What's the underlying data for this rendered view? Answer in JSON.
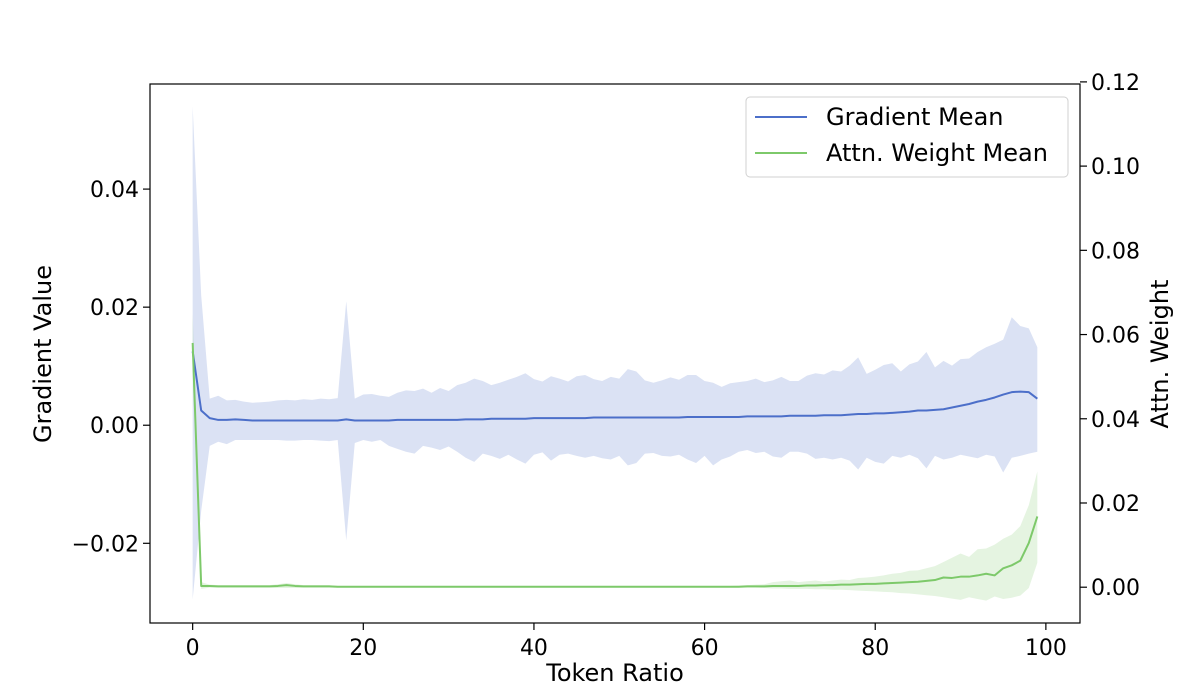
{
  "chart_data": {
    "type": "line",
    "title": "",
    "xlabel": "Token Ratio",
    "ylabel": "Gradient Value",
    "y2label": "Attn. Weight",
    "xlim": [
      -5,
      104
    ],
    "ylim": [
      -0.0335,
      0.0578
    ],
    "y2lim": [
      -0.0085,
      0.1195
    ],
    "x_ticks": [
      0,
      20,
      40,
      60,
      80,
      100
    ],
    "y_ticks": [
      -0.02,
      0.0,
      0.02,
      0.04
    ],
    "y2_ticks": [
      0.0,
      0.02,
      0.04,
      0.06,
      0.08,
      0.1,
      0.12
    ],
    "x_tick_labels": [
      "0",
      "20",
      "40",
      "60",
      "80",
      "100"
    ],
    "y_tick_labels": [
      "−0.02",
      "0.00",
      "0.02",
      "0.04"
    ],
    "y2_tick_labels": [
      "0.00",
      "0.02",
      "0.04",
      "0.06",
      "0.08",
      "0.10",
      "0.12"
    ],
    "grid": false,
    "legend_position": "top-right",
    "x": [
      0,
      1,
      2,
      3,
      4,
      5,
      6,
      7,
      8,
      9,
      10,
      11,
      12,
      13,
      14,
      15,
      16,
      17,
      18,
      19,
      20,
      21,
      22,
      23,
      24,
      25,
      26,
      27,
      28,
      29,
      30,
      31,
      32,
      33,
      34,
      35,
      36,
      37,
      38,
      39,
      40,
      41,
      42,
      43,
      44,
      45,
      46,
      47,
      48,
      49,
      50,
      51,
      52,
      53,
      54,
      55,
      56,
      57,
      58,
      59,
      60,
      61,
      62,
      63,
      64,
      65,
      66,
      67,
      68,
      69,
      70,
      71,
      72,
      73,
      74,
      75,
      76,
      77,
      78,
      79,
      80,
      81,
      82,
      83,
      84,
      85,
      86,
      87,
      88,
      89,
      90,
      91,
      92,
      93,
      94,
      95,
      96,
      97,
      98,
      99
    ],
    "series": [
      {
        "name": "Gradient Mean",
        "axis": "left",
        "color": "#4c6fc9",
        "band_color": "#4c6fc9",
        "values": [
          0.0125,
          0.0025,
          0.0012,
          0.0009,
          0.0009,
          0.001,
          0.0009,
          0.0008,
          0.0008,
          0.0008,
          0.0008,
          0.0008,
          0.0008,
          0.0008,
          0.0008,
          0.0008,
          0.0008,
          0.0008,
          0.001,
          0.0008,
          0.0008,
          0.0008,
          0.0008,
          0.0008,
          0.0009,
          0.0009,
          0.0009,
          0.0009,
          0.0009,
          0.0009,
          0.0009,
          0.0009,
          0.001,
          0.001,
          0.001,
          0.0011,
          0.0011,
          0.0011,
          0.0011,
          0.0011,
          0.0012,
          0.0012,
          0.0012,
          0.0012,
          0.0012,
          0.0012,
          0.0012,
          0.0013,
          0.0013,
          0.0013,
          0.0013,
          0.0013,
          0.0013,
          0.0013,
          0.0013,
          0.0013,
          0.0013,
          0.0013,
          0.0014,
          0.0014,
          0.0014,
          0.0014,
          0.0014,
          0.0014,
          0.0014,
          0.0015,
          0.0015,
          0.0015,
          0.0015,
          0.0015,
          0.0016,
          0.0016,
          0.0016,
          0.0016,
          0.0017,
          0.0017,
          0.0017,
          0.0018,
          0.0019,
          0.0019,
          0.002,
          0.002,
          0.0021,
          0.0022,
          0.0023,
          0.0025,
          0.0025,
          0.0026,
          0.0027,
          0.003,
          0.0033,
          0.0036,
          0.004,
          0.0043,
          0.0047,
          0.0052,
          0.0056,
          0.0057,
          0.0056,
          0.0045
        ],
        "upper": [
          0.054,
          0.022,
          0.0045,
          0.005,
          0.0042,
          0.0043,
          0.004,
          0.0038,
          0.0039,
          0.004,
          0.0042,
          0.0043,
          0.0042,
          0.0044,
          0.0043,
          0.0045,
          0.0044,
          0.0046,
          0.021,
          0.0045,
          0.0052,
          0.0053,
          0.005,
          0.0048,
          0.0055,
          0.0059,
          0.0058,
          0.0062,
          0.0055,
          0.0063,
          0.0058,
          0.0068,
          0.0072,
          0.0079,
          0.0075,
          0.0068,
          0.0072,
          0.0077,
          0.0082,
          0.0088,
          0.0078,
          0.0074,
          0.0083,
          0.0079,
          0.0074,
          0.0083,
          0.0085,
          0.0078,
          0.0075,
          0.0082,
          0.0079,
          0.0095,
          0.0091,
          0.0076,
          0.0072,
          0.0076,
          0.0081,
          0.0077,
          0.0085,
          0.0085,
          0.0075,
          0.0072,
          0.0065,
          0.0071,
          0.0073,
          0.0075,
          0.0079,
          0.0073,
          0.0076,
          0.0082,
          0.0075,
          0.0075,
          0.0084,
          0.0088,
          0.0086,
          0.0093,
          0.0091,
          0.0101,
          0.0115,
          0.0087,
          0.0094,
          0.0102,
          0.0105,
          0.0091,
          0.0103,
          0.0108,
          0.0124,
          0.0098,
          0.0109,
          0.0101,
          0.0112,
          0.0113,
          0.0124,
          0.0132,
          0.0138,
          0.0145,
          0.0183,
          0.0168,
          0.0164,
          0.0132
        ],
        "lower": [
          -0.0295,
          -0.0145,
          -0.0035,
          -0.0028,
          -0.0032,
          -0.0025,
          -0.0025,
          -0.0025,
          -0.0025,
          -0.0025,
          -0.0025,
          -0.0026,
          -0.0026,
          -0.0025,
          -0.0025,
          -0.0026,
          -0.0027,
          -0.0025,
          -0.0195,
          -0.003,
          -0.0025,
          -0.0028,
          -0.0025,
          -0.0035,
          -0.004,
          -0.0045,
          -0.0048,
          -0.0035,
          -0.0038,
          -0.0042,
          -0.0036,
          -0.0045,
          -0.0055,
          -0.0062,
          -0.0048,
          -0.0052,
          -0.0057,
          -0.005,
          -0.0058,
          -0.0065,
          -0.005,
          -0.0046,
          -0.006,
          -0.005,
          -0.0048,
          -0.0052,
          -0.0055,
          -0.0052,
          -0.0056,
          -0.0058,
          -0.0052,
          -0.0068,
          -0.0064,
          -0.0048,
          -0.0047,
          -0.0052,
          -0.0053,
          -0.005,
          -0.0058,
          -0.0064,
          -0.0052,
          -0.0068,
          -0.0058,
          -0.0053,
          -0.0045,
          -0.0042,
          -0.0047,
          -0.0045,
          -0.0053,
          -0.0055,
          -0.0045,
          -0.0045,
          -0.0048,
          -0.0057,
          -0.0055,
          -0.0058,
          -0.0055,
          -0.006,
          -0.0075,
          -0.0055,
          -0.0062,
          -0.0065,
          -0.0052,
          -0.0055,
          -0.005,
          -0.0056,
          -0.0073,
          -0.0052,
          -0.0058,
          -0.0055,
          -0.005,
          -0.0053,
          -0.0056,
          -0.005,
          -0.0053,
          -0.008,
          -0.0055,
          -0.0052,
          -0.0048,
          -0.0045
        ]
      },
      {
        "name": "Attn. Weight Mean",
        "axis": "right",
        "color": "#7dc96a",
        "band_color": "#7dc96a",
        "values": [
          0.058,
          0.0003,
          0.0003,
          0.0002,
          0.0002,
          0.0002,
          0.0002,
          0.0002,
          0.0002,
          0.0002,
          0.0003,
          0.0005,
          0.0003,
          0.0002,
          0.0002,
          0.0002,
          0.0002,
          0.0001,
          0.0001,
          0.0001,
          0.0001,
          0.0001,
          0.0001,
          0.0001,
          0.0001,
          0.0001,
          0.0001,
          0.0001,
          0.0001,
          0.0001,
          0.0001,
          0.0001,
          0.0001,
          0.0001,
          0.0001,
          0.0001,
          0.0001,
          0.0001,
          0.0001,
          0.0001,
          0.0001,
          0.0001,
          0.0001,
          0.0001,
          0.0001,
          0.0001,
          0.0001,
          0.0001,
          0.0001,
          0.0001,
          0.0001,
          0.0001,
          0.0001,
          0.0001,
          0.0001,
          0.0001,
          0.0001,
          0.0001,
          0.0001,
          0.0001,
          0.0001,
          0.0001,
          0.0001,
          0.0001,
          0.0001,
          0.0002,
          0.0002,
          0.0002,
          0.0003,
          0.0003,
          0.0003,
          0.0003,
          0.0004,
          0.0004,
          0.0005,
          0.0005,
          0.0006,
          0.0006,
          0.0007,
          0.0008,
          0.0008,
          0.0009,
          0.001,
          0.0011,
          0.0012,
          0.0013,
          0.0015,
          0.0017,
          0.0023,
          0.0022,
          0.0025,
          0.0025,
          0.0028,
          0.0032,
          0.0028,
          0.0045,
          0.0052,
          0.0063,
          0.0105,
          0.0168
        ],
        "upper": [
          0.065,
          0.0012,
          0.0006,
          0.0005,
          0.0005,
          0.0005,
          0.0005,
          0.0005,
          0.0005,
          0.0005,
          0.0007,
          0.001,
          0.0007,
          0.0005,
          0.0005,
          0.0005,
          0.0005,
          0.0003,
          0.0003,
          0.0003,
          0.0003,
          0.0003,
          0.0003,
          0.0003,
          0.0003,
          0.0003,
          0.0003,
          0.0003,
          0.0003,
          0.0003,
          0.0003,
          0.0003,
          0.0003,
          0.0003,
          0.0003,
          0.0003,
          0.0003,
          0.0003,
          0.0003,
          0.0003,
          0.0003,
          0.0003,
          0.0003,
          0.0003,
          0.0003,
          0.0003,
          0.0003,
          0.0003,
          0.0003,
          0.0003,
          0.0003,
          0.0003,
          0.0003,
          0.0003,
          0.0003,
          0.0003,
          0.0003,
          0.0003,
          0.0003,
          0.0003,
          0.0003,
          0.0003,
          0.0003,
          0.0003,
          0.0004,
          0.0005,
          0.0006,
          0.0007,
          0.0012,
          0.0014,
          0.0016,
          0.0012,
          0.0014,
          0.0016,
          0.0013,
          0.0016,
          0.0018,
          0.0017,
          0.0022,
          0.0023,
          0.0025,
          0.0028,
          0.0032,
          0.0034,
          0.0039,
          0.004,
          0.0045,
          0.005,
          0.006,
          0.007,
          0.008,
          0.0072,
          0.009,
          0.0092,
          0.0101,
          0.0115,
          0.0125,
          0.0145,
          0.0195,
          0.0275
        ],
        "lower": [
          0.051,
          -0.0004,
          -0.0001,
          -0.0001,
          -0.0001,
          -0.0001,
          -0.0001,
          -0.0001,
          -0.0001,
          -0.0001,
          -0.0002,
          -0.0002,
          -0.0002,
          -0.0001,
          -0.0001,
          -0.0001,
          -0.0001,
          -0.0001,
          -0.0001,
          -0.0001,
          -0.0001,
          -0.0001,
          -0.0001,
          -0.0001,
          -0.0001,
          -0.0001,
          -0.0001,
          -0.0001,
          -0.0001,
          -0.0001,
          -0.0001,
          -0.0001,
          -0.0001,
          -0.0001,
          -0.0001,
          -0.0001,
          -0.0001,
          -0.0001,
          -0.0001,
          -0.0001,
          -0.0001,
          -0.0001,
          -0.0001,
          -0.0001,
          -0.0001,
          -0.0001,
          -0.0001,
          -0.0001,
          -0.0001,
          -0.0001,
          -0.0001,
          -0.0001,
          -0.0001,
          -0.0001,
          -0.0001,
          -0.0001,
          -0.0001,
          -0.0001,
          -0.0001,
          -0.0001,
          -0.0001,
          -0.0001,
          -0.0001,
          -0.0001,
          -0.0001,
          -0.0001,
          -0.0001,
          -0.0002,
          -0.0003,
          -0.0003,
          -0.0004,
          -0.0004,
          -0.0004,
          -0.0005,
          -0.0005,
          -0.0006,
          -0.0006,
          -0.0007,
          -0.0008,
          -0.0009,
          -0.001,
          -0.0011,
          -0.0012,
          -0.0014,
          -0.0015,
          -0.0017,
          -0.0019,
          -0.0021,
          -0.0024,
          -0.0027,
          -0.003,
          -0.0024,
          -0.0028,
          -0.0032,
          -0.0022,
          -0.0028,
          -0.0025,
          -0.002,
          -0.0002,
          0.0058
        ]
      }
    ]
  }
}
